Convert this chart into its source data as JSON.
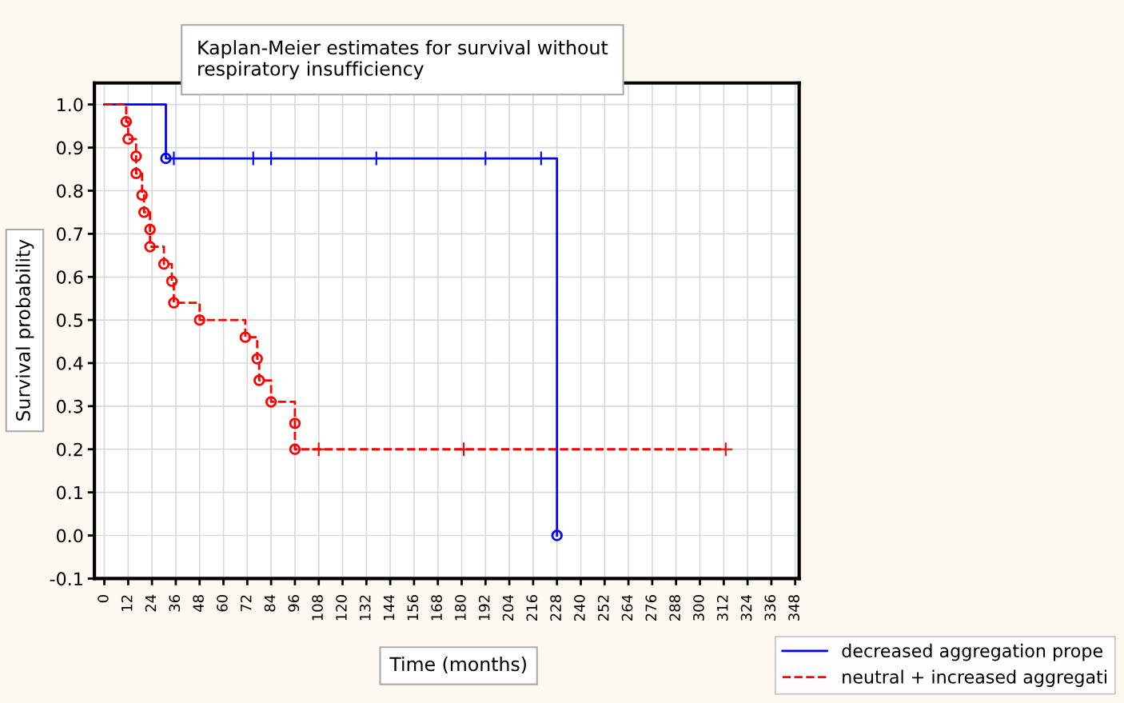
{
  "chart_data": {
    "type": "step",
    "title": "Kaplan-Meier estimates for survival without\nrespiratory insufficiency",
    "xlabel": "Time (months)",
    "ylabel": "Survival probability",
    "series": [
      {
        "name": "decreased aggregation prope",
        "color": "#0000ff",
        "line_style": "solid",
        "x": [
          0,
          31,
          228,
          228
        ],
        "values": [
          1.0,
          0.875,
          0.0,
          0.0
        ]
      },
      {
        "name": "neutral + increased aggregati",
        "color": "#ff0000",
        "line_style": "dashed",
        "x": [
          0,
          11,
          12,
          16,
          16,
          19,
          20,
          23,
          23,
          30,
          34,
          35,
          48,
          71,
          77,
          78,
          84,
          96,
          96,
          313
        ],
        "values": [
          1.0,
          0.96,
          0.92,
          0.88,
          0.84,
          0.79,
          0.75,
          0.71,
          0.67,
          0.63,
          0.59,
          0.54,
          0.5,
          0.46,
          0.41,
          0.36,
          0.31,
          0.26,
          0.2,
          0.2
        ]
      },
      {
        "type": "scatter",
        "marker": "circle",
        "color": "#0000ff",
        "x": [
          31,
          228
        ],
        "values": [
          0.875,
          0.0
        ]
      },
      {
        "type": "scatter",
        "marker": "cross",
        "color": "#0000ff",
        "x": [
          35,
          75,
          84,
          137,
          192,
          220
        ],
        "values": [
          0.875,
          0.875,
          0.875,
          0.875,
          0.875,
          0.875
        ]
      },
      {
        "type": "scatter",
        "marker": "circle",
        "color": "#ff0000",
        "x": [
          11,
          12,
          16,
          16,
          19,
          20,
          23,
          23,
          30,
          34,
          35,
          48,
          71,
          77,
          78,
          84,
          96,
          96
        ],
        "values": [
          0.96,
          0.92,
          0.88,
          0.84,
          0.79,
          0.75,
          0.71,
          0.67,
          0.63,
          0.59,
          0.54,
          0.5,
          0.46,
          0.41,
          0.36,
          0.31,
          0.26,
          0.2
        ]
      },
      {
        "type": "scatter",
        "marker": "cross",
        "color": "#ff0000",
        "x": [
          108,
          181,
          313
        ],
        "values": [
          0.2,
          0.2,
          0.2
        ]
      }
    ],
    "xlim": [
      -5,
      350
    ],
    "ylim": [
      -0.1,
      1.05
    ],
    "xticks": [
      0,
      12,
      24,
      36,
      48,
      60,
      72,
      84,
      96,
      108,
      120,
      132,
      144,
      156,
      168,
      180,
      192,
      204,
      216,
      228,
      240,
      252,
      264,
      276,
      288,
      300,
      312,
      324,
      336,
      348
    ],
    "yticks": [
      {
        "value": -0.1,
        "label": "-0.1"
      },
      {
        "value": 0,
        "label": "0.0"
      },
      {
        "value": 0.1,
        "label": "0.1"
      },
      {
        "value": 0.2,
        "label": "0.2"
      },
      {
        "value": 0.3,
        "label": "0.3"
      },
      {
        "value": 0.4,
        "label": "0.4"
      },
      {
        "value": 0.5,
        "label": "0.5"
      },
      {
        "value": 0.6,
        "label": "0.6"
      },
      {
        "value": 0.7,
        "label": "0.7"
      },
      {
        "value": 0.8,
        "label": "0.8"
      },
      {
        "value": 0.9,
        "label": "0.9"
      },
      {
        "value": 1.0,
        "label": "1.0"
      }
    ],
    "grid": true,
    "legend": "bottom right"
  }
}
